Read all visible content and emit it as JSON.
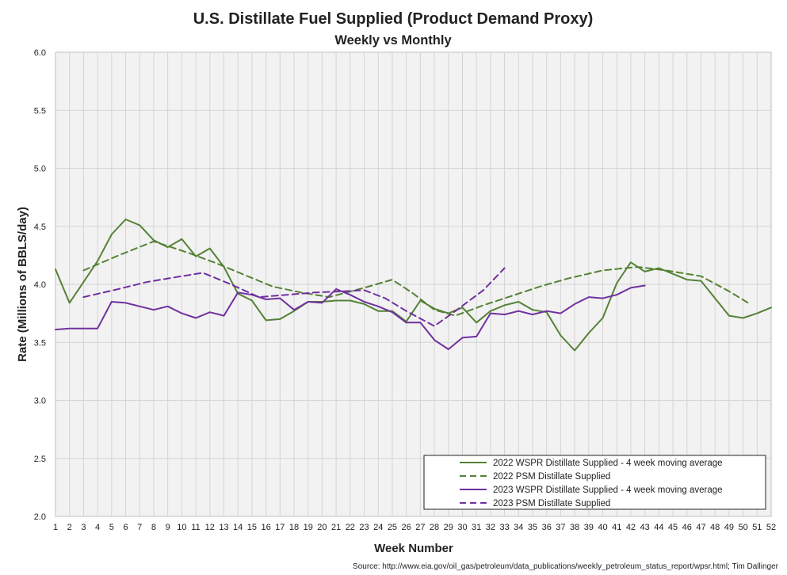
{
  "chart_data": {
    "type": "line",
    "title": "U.S. Distillate Fuel Supplied (Product Demand Proxy)",
    "subtitle": "Weekly vs Monthly",
    "xlabel": "Week Number",
    "ylabel": "Rate (Millions of BBLS/day)",
    "source": "Source: http://www.eia.gov/oil_gas/petroleum/data_publications/weekly_petroleum_status_report/wpsr.html; Tim Dallinger",
    "xlim": [
      1,
      52
    ],
    "ylim": [
      2.0,
      6.0
    ],
    "x_ticks": [
      1,
      2,
      3,
      4,
      5,
      6,
      7,
      8,
      9,
      10,
      11,
      12,
      13,
      14,
      15,
      16,
      17,
      18,
      19,
      20,
      21,
      22,
      23,
      24,
      25,
      26,
      27,
      28,
      29,
      30,
      31,
      32,
      33,
      34,
      35,
      36,
      37,
      38,
      39,
      40,
      41,
      42,
      43,
      44,
      45,
      46,
      47,
      48,
      49,
      50,
      51,
      52
    ],
    "y_ticks": [
      "2.0",
      "2.5",
      "3.0",
      "3.5",
      "4.0",
      "4.5",
      "5.0",
      "5.5",
      "6.0"
    ],
    "grid": true,
    "legend_position": "bottom-right",
    "series": [
      {
        "name": "2022 WSPR Distillate Supplied - 4 week moving average",
        "color": "#548235",
        "dash": "solid",
        "x": [
          1,
          2,
          3,
          4,
          5,
          6,
          7,
          8,
          9,
          10,
          11,
          12,
          13,
          14,
          15,
          16,
          17,
          18,
          19,
          20,
          21,
          22,
          23,
          24,
          25,
          26,
          27,
          28,
          29,
          30,
          31,
          32,
          33,
          34,
          35,
          36,
          37,
          38,
          39,
          40,
          41,
          42,
          43,
          44,
          45,
          46,
          47,
          48,
          49,
          50,
          51,
          52
        ],
        "y": [
          4.13,
          3.84,
          4.02,
          4.2,
          4.43,
          4.56,
          4.51,
          4.38,
          4.32,
          4.39,
          4.24,
          4.31,
          4.15,
          3.92,
          3.86,
          3.69,
          3.7,
          3.77,
          3.85,
          3.85,
          3.86,
          3.86,
          3.83,
          3.77,
          3.77,
          3.68,
          3.86,
          3.79,
          3.75,
          3.8,
          3.67,
          3.77,
          3.82,
          3.85,
          3.78,
          3.76,
          3.56,
          3.43,
          3.58,
          3.71,
          4.01,
          4.19,
          4.11,
          4.14,
          4.09,
          4.04,
          4.03,
          3.88,
          3.73,
          3.71,
          3.75,
          3.8
        ]
      },
      {
        "name": "2022 PSM Distillate Supplied",
        "color": "#548235",
        "dash": "dashed",
        "x": [
          3,
          5.5,
          8,
          10.5,
          12.5,
          14.5,
          16.5,
          18.5,
          20.5,
          23,
          25,
          26.5,
          28,
          29.5,
          31.5,
          33.5,
          35.5,
          37.5,
          40,
          42.5,
          44.5,
          47,
          49,
          50.5
        ],
        "y": [
          4.12,
          4.25,
          4.37,
          4.27,
          4.18,
          4.08,
          3.98,
          3.93,
          3.89,
          3.97,
          4.04,
          3.92,
          3.78,
          3.73,
          3.82,
          3.9,
          3.98,
          4.05,
          4.12,
          4.15,
          4.12,
          4.07,
          3.94,
          3.83
        ]
      },
      {
        "name": "2023 WSPR Distillate Supplied - 4 week moving average",
        "color": "#7030a0",
        "dash": "solid",
        "x": [
          1,
          2,
          3,
          4,
          5,
          6,
          7,
          8,
          9,
          10,
          11,
          12,
          13,
          14,
          15,
          16,
          17,
          18,
          19,
          20,
          21,
          22,
          23,
          24,
          25,
          26,
          27,
          28,
          29,
          30,
          31,
          32,
          33,
          34,
          35,
          36,
          37,
          38,
          39,
          40,
          41,
          42,
          43
        ],
        "y": [
          3.61,
          3.62,
          3.62,
          3.62,
          3.85,
          3.84,
          3.81,
          3.78,
          3.81,
          3.75,
          3.71,
          3.76,
          3.73,
          3.93,
          3.91,
          3.87,
          3.88,
          3.78,
          3.85,
          3.84,
          3.96,
          3.91,
          3.85,
          3.81,
          3.76,
          3.67,
          3.67,
          3.52,
          3.44,
          3.54,
          3.55,
          3.75,
          3.74,
          3.77,
          3.74,
          3.77,
          3.75,
          3.83,
          3.89,
          3.88,
          3.91,
          3.97,
          3.99
        ]
      },
      {
        "name": "2023 PSM Distillate Supplied",
        "color": "#7030a0",
        "dash": "dashed",
        "x": [
          3,
          5.5,
          7.5,
          9.5,
          11.5,
          13.5,
          15.5,
          17.5,
          19.5,
          21.5,
          23,
          24.5,
          26,
          28,
          29.5,
          31.5,
          33
        ],
        "y": [
          3.89,
          3.96,
          4.02,
          4.06,
          4.1,
          4.0,
          3.89,
          3.91,
          3.93,
          3.94,
          3.95,
          3.88,
          3.77,
          3.64,
          3.77,
          3.95,
          4.14
        ]
      }
    ]
  }
}
